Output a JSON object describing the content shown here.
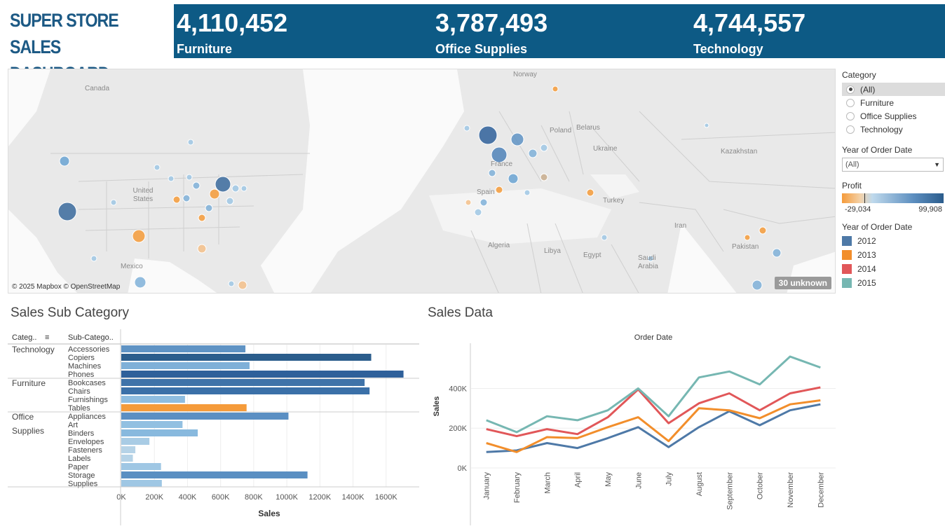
{
  "dashboard": {
    "title_line1": "SUPER STORE SALES",
    "title_line2": "DASHBOARD"
  },
  "kpis": [
    {
      "value": "4,110,452",
      "label": "Furniture"
    },
    {
      "value": "3,787,493",
      "label": "Office Supplies"
    },
    {
      "value": "4,744,557",
      "label": "Technology"
    }
  ],
  "map": {
    "labels": [
      "Canada",
      "United States",
      "Mexico",
      "Norway",
      "Poland",
      "Belarus",
      "Ukraine",
      "Kazakhstan",
      "France",
      "Spain",
      "Algeria",
      "Libya",
      "Egypt",
      "Turkey",
      "Iran",
      "Saudi Arabia",
      "Pakistan"
    ],
    "credit": "© 2025 Mapbox © OpenStreetMap",
    "unknown": "30 unknown"
  },
  "filters": {
    "category": {
      "heading": "Category",
      "options": [
        "(All)",
        "Furniture",
        "Office Supplies",
        "Technology"
      ],
      "selected": "(All)"
    },
    "year": {
      "heading": "Year of Order Date",
      "value": "(All)"
    },
    "profit": {
      "heading": "Profit",
      "min": "-29,034",
      "max": "99,908"
    },
    "year_legend": {
      "heading": "Year of Order Date",
      "items": [
        {
          "label": "2012",
          "color": "#4e79a7"
        },
        {
          "label": "2013",
          "color": "#f28e2b"
        },
        {
          "label": "2014",
          "color": "#e15759"
        },
        {
          "label": "2015",
          "color": "#76b7b2"
        }
      ]
    }
  },
  "subcategory_chart": {
    "title": "Sales Sub Category",
    "col_category": "Categ..",
    "col_subcategory": "Sub-Catego..",
    "xlabel": "Sales",
    "ticks": [
      "0K",
      "200K",
      "400K",
      "600K",
      "800K",
      "1000K",
      "1200K",
      "1400K",
      "1600K"
    ],
    "groups": [
      {
        "category": "Technology",
        "items": [
          {
            "name": "Accessories",
            "value": 750000,
            "color": "#5f93c4"
          },
          {
            "name": "Copiers",
            "value": 1510000,
            "color": "#2b5d8c"
          },
          {
            "name": "Machines",
            "value": 775000,
            "color": "#7fb0d8"
          },
          {
            "name": "Phones",
            "value": 1705000,
            "color": "#2f609a"
          }
        ]
      },
      {
        "category": "Furniture",
        "items": [
          {
            "name": "Bookcases",
            "value": 1470000,
            "color": "#3f73a9"
          },
          {
            "name": "Chairs",
            "value": 1500000,
            "color": "#3b70a8"
          },
          {
            "name": "Furnishings",
            "value": 385000,
            "color": "#8fbde0"
          },
          {
            "name": "Tables",
            "value": 757000,
            "color": "#f59b3a"
          }
        ]
      },
      {
        "category": "Office Supplies",
        "items": [
          {
            "name": "Appliances",
            "value": 1010000,
            "color": "#5b8fc3"
          },
          {
            "name": "Art",
            "value": 370000,
            "color": "#92c0e1"
          },
          {
            "name": "Binders",
            "value": 462000,
            "color": "#88b9de"
          },
          {
            "name": "Envelopes",
            "value": 170000,
            "color": "#a9cce5"
          },
          {
            "name": "Fasteners",
            "value": 85000,
            "color": "#b6d3e7"
          },
          {
            "name": "Labels",
            "value": 70000,
            "color": "#b6d3e7"
          },
          {
            "name": "Paper",
            "value": 240000,
            "color": "#9fc7e4"
          },
          {
            "name": "Storage",
            "value": 1125000,
            "color": "#5a8fc2"
          },
          {
            "name": "Supplies",
            "value": 245000,
            "color": "#9fc7e4"
          }
        ]
      }
    ]
  },
  "chart_data": {
    "type": "line",
    "title": "Sales Data",
    "subtitle": "Order Date",
    "ylabel": "Sales",
    "ylim": [
      0,
      620000
    ],
    "yticks": [
      "0K",
      "200K",
      "400K"
    ],
    "x": [
      "January",
      "February",
      "March",
      "April",
      "May",
      "June",
      "July",
      "August",
      "September",
      "October",
      "November",
      "December"
    ],
    "series": [
      {
        "name": "2012",
        "color": "#4e79a7",
        "values": [
          80000,
          88000,
          125000,
          100000,
          150000,
          205000,
          105000,
          205000,
          285000,
          215000,
          290000,
          320000
        ]
      },
      {
        "name": "2013",
        "color": "#f28e2b",
        "values": [
          125000,
          80000,
          155000,
          150000,
          205000,
          255000,
          135000,
          300000,
          290000,
          250000,
          320000,
          340000
        ]
      },
      {
        "name": "2014",
        "color": "#e15759",
        "values": [
          195000,
          160000,
          195000,
          170000,
          255000,
          395000,
          225000,
          325000,
          375000,
          290000,
          375000,
          405000
        ]
      },
      {
        "name": "2015",
        "color": "#76b7b2",
        "values": [
          240000,
          180000,
          260000,
          240000,
          290000,
          400000,
          260000,
          455000,
          485000,
          420000,
          560000,
          505000
        ]
      }
    ]
  }
}
